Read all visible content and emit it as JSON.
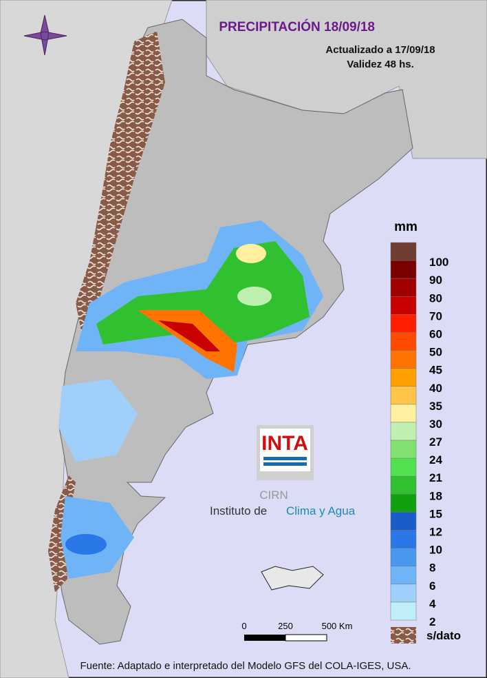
{
  "header": {
    "title": "PRECIPITACIÓN 18/09/18",
    "updated": "Actualizado a 17/09/18",
    "validity": "Validez 48 hs."
  },
  "legend": {
    "unit": "mm",
    "colors": [
      "#6e3c30",
      "#7a0000",
      "#a00000",
      "#c80000",
      "#ff1e00",
      "#ff4a00",
      "#ff7400",
      "#ffa000",
      "#ffc448",
      "#fff0a0",
      "#c0f0b0",
      "#80e070",
      "#50e050",
      "#30c030",
      "#10a010",
      "#1a5cc8",
      "#2a78e8",
      "#4898f0",
      "#70b4f8",
      "#a0d0fa",
      "#c0eef8"
    ],
    "labels": [
      "100",
      "90",
      "80",
      "70",
      "60",
      "50",
      "45",
      "40",
      "35",
      "30",
      "27",
      "24",
      "21",
      "18",
      "15",
      "12",
      "10",
      "8",
      "6",
      "4",
      "2"
    ],
    "no_data": "s/dato"
  },
  "scale_bar": {
    "labels": [
      "0",
      "250",
      "500 Km"
    ]
  },
  "logo": {
    "brand": "INTA",
    "sub": "CIRN",
    "name_a": "Instituto de",
    "name_b": "Clima y Agua"
  },
  "footer": "Fuente: Adaptado e interpretado del Modelo GFS del COLA-IGES, USA."
}
